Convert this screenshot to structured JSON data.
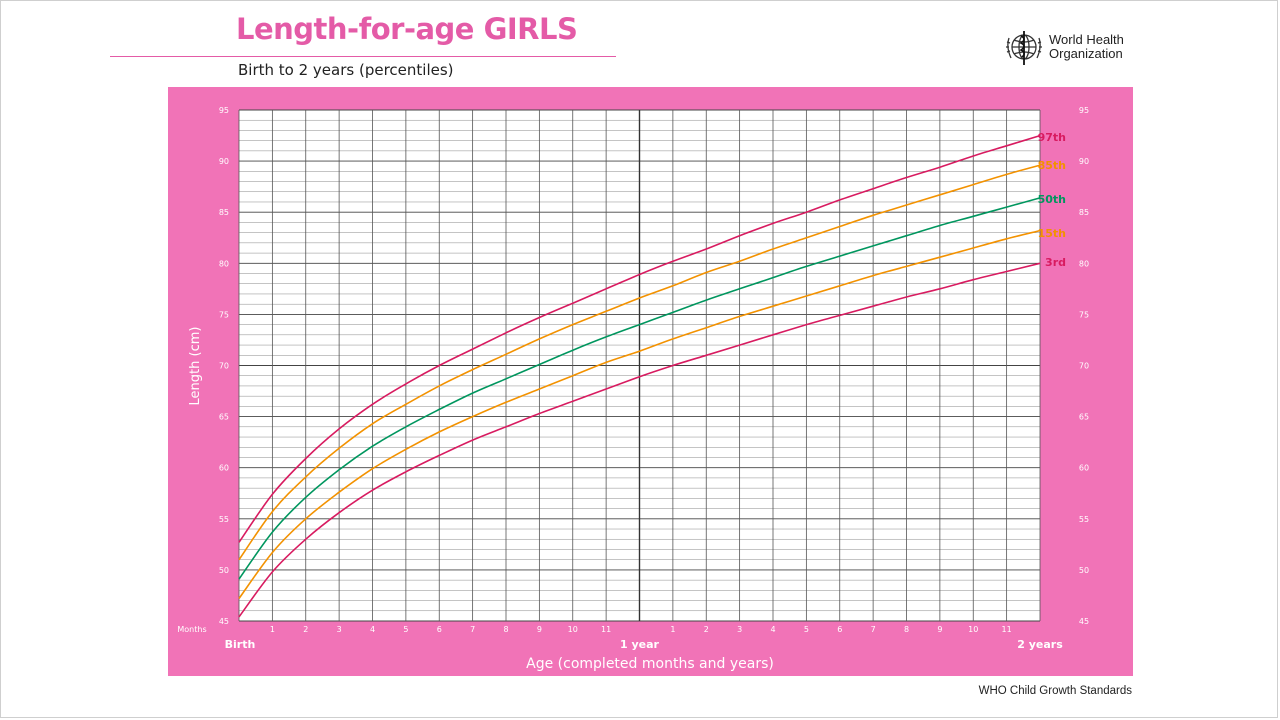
{
  "header": {
    "title": "Length-for-age GIRLS",
    "subtitle": "Birth to 2 years (percentiles)"
  },
  "logo": {
    "icon": "who-emblem-icon",
    "line1": "World Health",
    "line2": "Organization"
  },
  "footer": "WHO Child Growth Standards",
  "colors": {
    "panel": "#f173b7",
    "title": "#e45ba7",
    "p97": "#d81b60",
    "p85": "#f39200",
    "p50": "#00965e",
    "p15": "#f39200",
    "p3": "#d81b60",
    "grid": "#555555"
  },
  "chart_data": {
    "type": "line",
    "ylabel": "Length (cm)",
    "xlabel": "Age (completed months and years)",
    "xlim": [
      0,
      24
    ],
    "ylim": [
      45,
      95
    ],
    "y_ticks": [
      45,
      50,
      55,
      60,
      65,
      70,
      75,
      80,
      85,
      90,
      95
    ],
    "x_corner_label": "Months",
    "x_tick_labels": [
      "Birth",
      "1",
      "2",
      "3",
      "4",
      "5",
      "6",
      "7",
      "8",
      "9",
      "10",
      "11",
      "1 year",
      "1",
      "2",
      "3",
      "4",
      "5",
      "6",
      "7",
      "8",
      "9",
      "10",
      "11",
      "2 years"
    ],
    "grid": true,
    "x": [
      0,
      1,
      2,
      3,
      4,
      5,
      6,
      7,
      8,
      9,
      10,
      11,
      12,
      13,
      14,
      15,
      16,
      17,
      18,
      19,
      20,
      21,
      22,
      23,
      24
    ],
    "series": [
      {
        "name": "97th",
        "color": "#d81b60",
        "values": [
          52.7,
          57.4,
          60.9,
          63.8,
          66.2,
          68.2,
          70.0,
          71.6,
          73.2,
          74.7,
          76.1,
          77.5,
          78.9,
          80.2,
          81.4,
          82.7,
          83.9,
          85.0,
          86.2,
          87.3,
          88.4,
          89.4,
          90.5,
          91.5,
          92.5
        ]
      },
      {
        "name": "85th",
        "color": "#f39200",
        "values": [
          51.0,
          55.7,
          59.1,
          61.9,
          64.3,
          66.2,
          68.0,
          69.6,
          71.1,
          72.6,
          74.0,
          75.3,
          76.6,
          77.8,
          79.1,
          80.2,
          81.4,
          82.5,
          83.6,
          84.7,
          85.7,
          86.7,
          87.7,
          88.7,
          89.6
        ]
      },
      {
        "name": "50th",
        "color": "#00965e",
        "values": [
          49.1,
          53.7,
          57.1,
          59.8,
          62.1,
          64.0,
          65.7,
          67.3,
          68.7,
          70.1,
          71.5,
          72.8,
          74.0,
          75.2,
          76.4,
          77.5,
          78.6,
          79.7,
          80.7,
          81.7,
          82.7,
          83.7,
          84.6,
          85.5,
          86.4
        ]
      },
      {
        "name": "15th",
        "color": "#f39200",
        "values": [
          47.2,
          51.7,
          55.0,
          57.6,
          59.9,
          61.8,
          63.5,
          65.0,
          66.4,
          67.7,
          69.0,
          70.3,
          71.4,
          72.6,
          73.7,
          74.8,
          75.8,
          76.8,
          77.8,
          78.8,
          79.7,
          80.6,
          81.5,
          82.4,
          83.2
        ]
      },
      {
        "name": "3rd",
        "color": "#d81b60",
        "values": [
          45.4,
          49.8,
          53.0,
          55.6,
          57.8,
          59.6,
          61.2,
          62.7,
          64.0,
          65.3,
          66.5,
          67.7,
          68.9,
          70.0,
          71.0,
          72.0,
          73.0,
          74.0,
          74.9,
          75.8,
          76.7,
          77.5,
          78.4,
          79.2,
          80.0
        ]
      }
    ]
  }
}
